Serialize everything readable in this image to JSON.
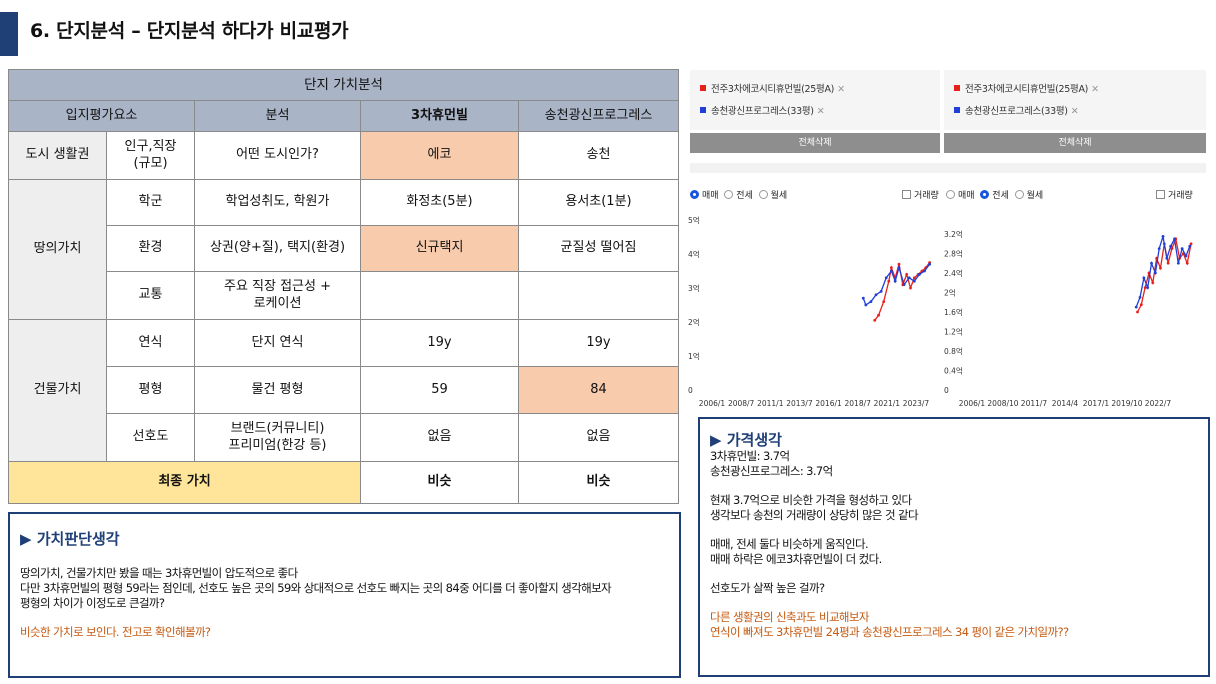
{
  "title": "6. 단지분석 – 단지분석 하다가 비교평가",
  "table": {
    "title": "단지 가치분석",
    "headers": [
      "입지평가요소",
      "분석",
      "3차휴먼빌",
      "송천광신프로그레스"
    ],
    "city": {
      "category": "도시 생활권",
      "sub": "인구,직장\n(규모)",
      "analysis": "어떤 도시인가?",
      "a": "에코",
      "b": "송천"
    },
    "land": {
      "category": "땅의가치",
      "rows": [
        {
          "sub": "학군",
          "analysis": "학업성취도, 학원가",
          "a": "화정초(5분)",
          "b": "용서초(1분)"
        },
        {
          "sub": "환경",
          "analysis": "상권(양+질), 택지(환경)",
          "a": "신규택지",
          "b": "균질성 떨어짐"
        },
        {
          "sub": "교통",
          "analysis": "주요 직장 접근성 +\n로케이션",
          "a": "",
          "b": ""
        }
      ]
    },
    "building": {
      "category": "건물가치",
      "rows": [
        {
          "sub": "연식",
          "analysis": "단지 연식",
          "a": "19y",
          "b": "19y"
        },
        {
          "sub": "평형",
          "analysis": "물건 평형",
          "a": "59",
          "b": "84"
        },
        {
          "sub": "선호도",
          "analysis": "브랜드(커뮤니티)\n프리미엄(한강 등)",
          "a": "없음",
          "b": "없음"
        }
      ]
    },
    "final": {
      "label": "최종 가치",
      "a": "비슷",
      "b": "비슷"
    }
  },
  "value_note": {
    "heading": "▶ 가치판단생각",
    "lines": [
      "땅의가치, 건물가치만 봤을 때는 3차휴먼빌이 압도적으로 좋다",
      "다만 3차휴먼빌의 평형 59라는 점인데, 선호도 높은 곳의 59와 상대적으로 선호도 빠지는 곳의 84중 어디를 더 좋아할지 생각해보자",
      "평형의 차이가 이정도로 큰걸까?"
    ],
    "conclusion": "비슷한 가치로 보인다. 전고로 확인해볼까?"
  },
  "compare_panels": [
    {
      "items": [
        {
          "color": "#e8201a",
          "label": "전주3차에코시티휴먼빌(25평A)"
        },
        {
          "color": "#1f3fd8",
          "label": "송천광신프로그레스(33평)"
        }
      ],
      "delete_all": "전체삭제",
      "radio": {
        "options": [
          "매매",
          "전세",
          "월세"
        ],
        "selected": "매매",
        "checkbox": "거래량"
      },
      "chart": {
        "y_ticks": [
          "5억",
          "4억",
          "3억",
          "2억",
          "1억",
          "0"
        ],
        "x_ticks": [
          "2006/1",
          "2008/7",
          "2011/1",
          "2013/7",
          "2016/1",
          "2018/7",
          "2021/1",
          "2023/7"
        ]
      }
    },
    {
      "items": [
        {
          "color": "#e8201a",
          "label": "전주3차에코시티휴먼빌(25평A)"
        },
        {
          "color": "#1f3fd8",
          "label": "송천광신프로그레스(33평)"
        }
      ],
      "delete_all": "전체삭제",
      "radio": {
        "options": [
          "매매",
          "전세",
          "월세"
        ],
        "selected": "전세",
        "checkbox": "거래량"
      },
      "chart": {
        "y_ticks": [
          "3.2억",
          "2.8억",
          "2.4억",
          "2억",
          "1.6억",
          "1.2억",
          "0.8억",
          "0.4억",
          "0"
        ],
        "x_ticks": [
          "2006/1",
          "2008/10",
          "2011/7",
          "2014/4",
          "2017/1",
          "2019/10",
          "2022/7"
        ]
      }
    }
  ],
  "chart_data": [
    {
      "type": "line",
      "title": "",
      "ylim": [
        0,
        5
      ],
      "series": [
        {
          "name": "전주3차에코시티휴먼빌(25평A)",
          "color": "#e8201a",
          "x": [
            2019.7,
            2020.0,
            2020.4,
            2020.8,
            2021.0,
            2021.3,
            2021.6,
            2021.9,
            2022.2,
            2022.5,
            2022.8,
            2023.1,
            2023.4,
            2023.7,
            2024.0
          ],
          "y": [
            2.05,
            2.2,
            2.6,
            3.2,
            3.6,
            3.3,
            3.7,
            3.1,
            3.4,
            3.0,
            3.3,
            3.4,
            3.5,
            3.6,
            3.75
          ]
        },
        {
          "name": "송천광신프로그레스(33평)",
          "color": "#1f3fd8",
          "x": [
            2018.8,
            2019.0,
            2019.4,
            2019.8,
            2020.2,
            2020.6,
            2021.0,
            2021.3,
            2021.6,
            2022.0,
            2022.4,
            2022.8,
            2023.2,
            2023.6,
            2024.0
          ],
          "y": [
            2.7,
            2.5,
            2.6,
            2.8,
            2.9,
            3.3,
            3.5,
            3.2,
            3.6,
            3.1,
            3.3,
            3.2,
            3.4,
            3.5,
            3.7
          ]
        }
      ]
    },
    {
      "type": "line",
      "title": "",
      "ylim": [
        0,
        3.2
      ],
      "series": [
        {
          "name": "전주3차에코시티휴먼빌(25평A)",
          "color": "#e8201a",
          "x": [
            2019.6,
            2019.9,
            2020.2,
            2020.5,
            2020.8,
            2021.1,
            2021.4,
            2021.7,
            2022.0,
            2022.3,
            2022.6,
            2022.9,
            2023.2,
            2023.5,
            2023.8
          ],
          "y": [
            1.6,
            1.75,
            2.1,
            2.4,
            2.2,
            2.7,
            2.5,
            3.0,
            2.6,
            2.9,
            3.1,
            2.7,
            2.8,
            2.6,
            3.0
          ]
        },
        {
          "name": "송천광신프로그레스(33평)",
          "color": "#1f3fd8",
          "x": [
            2019.5,
            2019.8,
            2020.1,
            2020.4,
            2020.7,
            2021.0,
            2021.3,
            2021.6,
            2021.9,
            2022.2,
            2022.5,
            2022.8,
            2023.1,
            2023.4,
            2023.7
          ],
          "y": [
            1.7,
            1.9,
            2.3,
            2.1,
            2.6,
            2.4,
            2.9,
            3.15,
            2.7,
            2.95,
            3.1,
            2.6,
            2.9,
            2.75,
            2.95
          ]
        }
      ]
    }
  ],
  "price_note": {
    "heading": "▶ 가격생각",
    "prices": [
      "3차휴먼빌: 3.7억",
      "송천광신프로그레스: 3.7억"
    ],
    "paras": [
      [
        "현재 3.7억으로 비슷한 가격을 형성하고 있다",
        "생각보다 송천의 거래량이 상당히 많은 것 같다"
      ],
      [
        "매매, 전세 둘다 비슷하게 움직인다.",
        "매매 하락은 에코3차휴먼빌이 더 컸다."
      ],
      [
        "선호도가 살짝 높은 걸까?"
      ]
    ],
    "conclusion": [
      "다른 생활권의 신축과도 비교해보자",
      "연식이 빠져도 3차휴먼빌 24평과 송천광신프로그레스 34 평이 같은 가치일까??"
    ]
  }
}
